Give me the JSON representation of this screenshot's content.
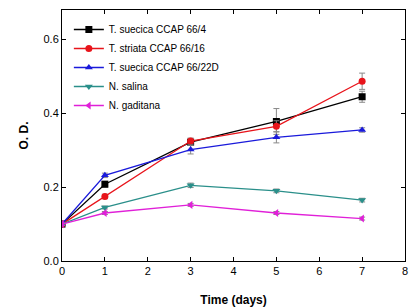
{
  "chart_data": {
    "type": "line",
    "x_label": "Time (days)",
    "y_label": "O. D.",
    "xlim": [
      0,
      8
    ],
    "xticks": [
      0,
      1,
      2,
      3,
      4,
      5,
      6,
      7,
      8
    ],
    "ylim": [
      0,
      0.68
    ],
    "yticks": [
      {
        "value": 0,
        "label": "0.0"
      },
      0.2,
      0.4,
      0.6
    ],
    "grid": false,
    "legend": "upper left",
    "series": [
      {
        "name": "T. suecica CCAP 66/4",
        "color": "#000000",
        "marker": "square",
        "x": [
          0,
          1,
          3,
          5,
          7
        ],
        "values": [
          0.1,
          0.208,
          0.322,
          0.378,
          0.445
        ],
        "errors": [
          0.003,
          0.008,
          0.006,
          0.035,
          0.015
        ]
      },
      {
        "name": "T. striata CCAP 66/16",
        "color": "#e8141b",
        "marker": "circle",
        "x": [
          0,
          1,
          3,
          5,
          7
        ],
        "values": [
          0.1,
          0.175,
          0.325,
          0.365,
          0.487
        ],
        "errors": [
          0.003,
          0.006,
          0.008,
          0.015,
          0.022
        ]
      },
      {
        "name": "T. suecica CCAP 66/22D",
        "color": "#1a1adb",
        "marker": "triangle-up",
        "x": [
          0,
          1,
          3,
          5,
          7
        ],
        "values": [
          0.1,
          0.232,
          0.302,
          0.335,
          0.355
        ],
        "errors": [
          0.003,
          0.006,
          0.012,
          0.015,
          0.006
        ]
      },
      {
        "name": "N. salina",
        "color": "#2a8f8a",
        "marker": "triangle-down",
        "x": [
          0,
          1,
          3,
          5,
          7
        ],
        "values": [
          0.1,
          0.145,
          0.205,
          0.19,
          0.165
        ],
        "errors": [
          0.003,
          0.004,
          0.006,
          0.005,
          0.005
        ]
      },
      {
        "name": "N. gaditana",
        "color": "#e020d8",
        "marker": "triangle-left",
        "x": [
          0,
          1,
          3,
          5,
          7
        ],
        "values": [
          0.1,
          0.13,
          0.152,
          0.13,
          0.115
        ],
        "errors": [
          0.003,
          0.004,
          0.004,
          0.004,
          0.004
        ]
      }
    ]
  }
}
